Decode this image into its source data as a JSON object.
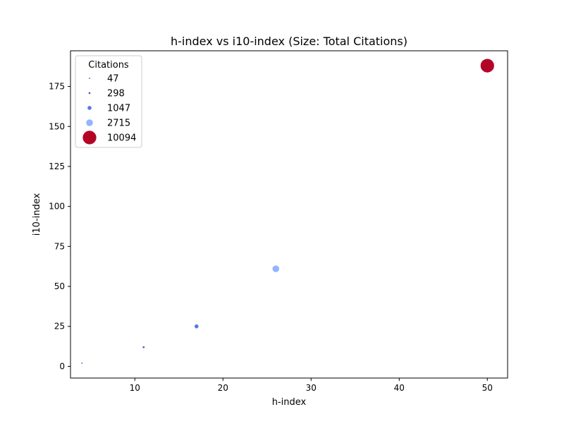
{
  "chart_data": {
    "type": "scatter",
    "title": "h-index vs i10-index (Size: Total Citations)",
    "xlabel": "h-index",
    "ylabel": "i10-index",
    "xlim": [
      2.7,
      52.3
    ],
    "ylim": [
      -7.3,
      197.3
    ],
    "xticks": [
      10,
      20,
      30,
      40,
      50
    ],
    "yticks": [
      0,
      25,
      50,
      75,
      100,
      125,
      150,
      175
    ],
    "grid": false,
    "legend": {
      "title": "Citations",
      "placement": "top-left",
      "entries": [
        {
          "label": "47",
          "value": 47,
          "color": "#3b4cc0"
        },
        {
          "label": "298",
          "value": 298,
          "color": "#4358cb"
        },
        {
          "label": "1047",
          "value": 1047,
          "color": "#5b7ae5"
        },
        {
          "label": "2715",
          "value": 2715,
          "color": "#93b5fe"
        },
        {
          "label": "10094",
          "value": 10094,
          "color": "#b40426"
        }
      ]
    },
    "points": [
      {
        "x": 4,
        "y": 2,
        "citations": 47,
        "color": "#3b4cc0"
      },
      {
        "x": 11,
        "y": 12,
        "citations": 298,
        "color": "#4358cb"
      },
      {
        "x": 17,
        "y": 25,
        "citations": 1047,
        "color": "#5b7ae5"
      },
      {
        "x": 26,
        "y": 61,
        "citations": 2715,
        "color": "#93b5fe"
      },
      {
        "x": 50,
        "y": 188,
        "citations": 10094,
        "color": "#b40426"
      }
    ]
  }
}
